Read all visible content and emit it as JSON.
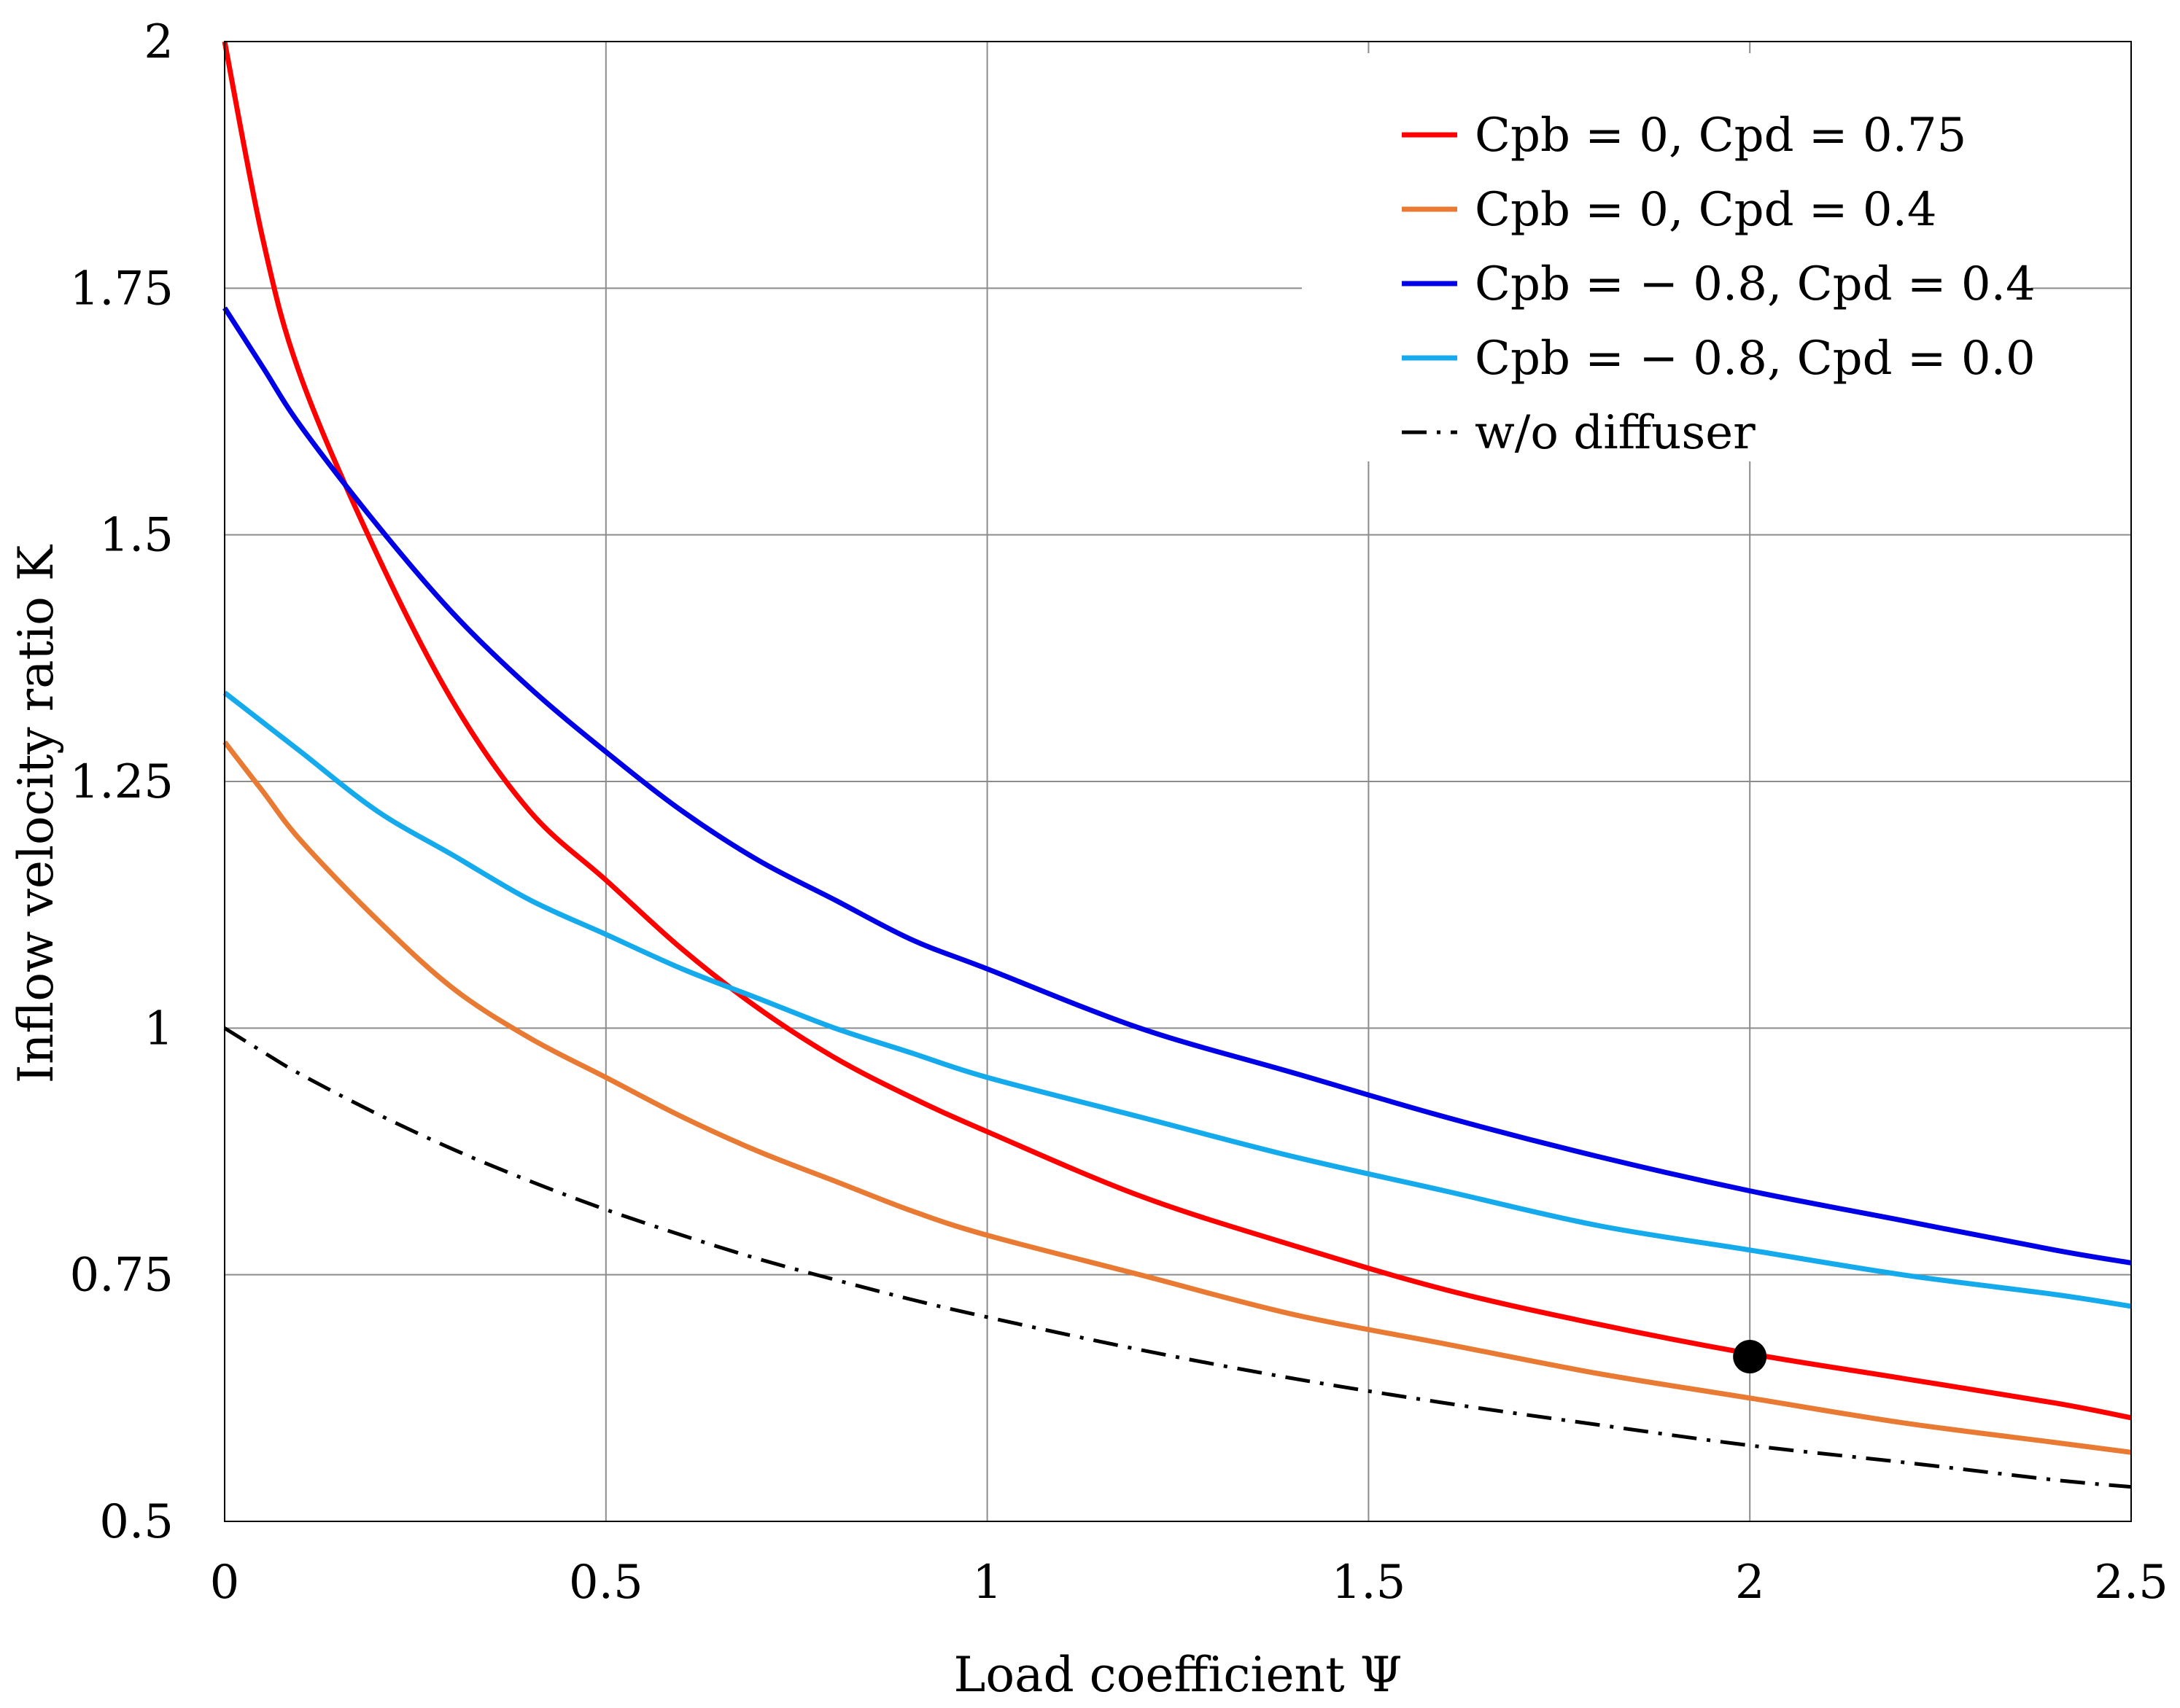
{
  "chart_data": {
    "type": "line",
    "title": "",
    "xlabel": "Load coefficient Ψ",
    "ylabel": "Inflow velocity ratio K",
    "xlim": [
      0,
      2.5
    ],
    "ylim": [
      0.5,
      2
    ],
    "xticks": [
      0,
      0.5,
      1,
      1.5,
      2,
      2.5
    ],
    "xtick_labels": [
      "0",
      "0.5",
      "1",
      "1.5",
      "2",
      "2.5"
    ],
    "yticks": [
      0.5,
      0.75,
      1,
      1.25,
      1.5,
      1.75,
      2
    ],
    "ytick_labels": [
      "0.5",
      "0.75",
      "1",
      "1.25",
      "1.5",
      "1.75",
      "2"
    ],
    "grid": true,
    "legend_position": "top-right",
    "x": [
      0,
      0.05,
      0.1,
      0.2,
      0.3,
      0.4,
      0.5,
      0.6,
      0.7,
      0.8,
      0.9,
      1.0,
      1.2,
      1.4,
      1.6,
      1.8,
      2.0,
      2.2,
      2.4,
      2.5
    ],
    "series": [
      {
        "name": "Cpb = 0, Cpd = 0.75",
        "color": "#ff0000",
        "dash": "solid",
        "values": [
          2.0,
          1.8,
          1.66,
          1.48,
          1.33,
          1.22,
          1.15,
          1.08,
          1.02,
          0.97,
          0.93,
          0.895,
          0.83,
          0.78,
          0.735,
          0.7,
          0.67,
          0.645,
          0.62,
          0.605
        ]
      },
      {
        "name": "Cpb = 0, Cpd = 0.4",
        "color": "#e87a33",
        "dash": "solid",
        "values": [
          1.29,
          1.24,
          1.19,
          1.11,
          1.04,
          0.99,
          0.95,
          0.91,
          0.875,
          0.845,
          0.815,
          0.79,
          0.75,
          0.71,
          0.68,
          0.65,
          0.625,
          0.6,
          0.58,
          0.57
        ]
      },
      {
        "name": "Cpb = − 0.8, Cpd = 0.4",
        "color": "#0000e6",
        "dash": "solid",
        "values": [
          1.73,
          1.67,
          1.61,
          1.51,
          1.42,
          1.345,
          1.28,
          1.22,
          1.17,
          1.13,
          1.09,
          1.06,
          1.0,
          0.955,
          0.91,
          0.87,
          0.835,
          0.805,
          0.775,
          0.762
        ]
      },
      {
        "name": "Cpb = − 0.8, Cpd = 0.0",
        "color": "#14aaeb",
        "dash": "solid",
        "values": [
          1.34,
          1.31,
          1.28,
          1.22,
          1.175,
          1.13,
          1.095,
          1.06,
          1.03,
          1.0,
          0.975,
          0.95,
          0.91,
          0.87,
          0.835,
          0.8,
          0.775,
          0.75,
          0.73,
          0.718
        ]
      },
      {
        "name": "w/o diffuser",
        "color": "#000000",
        "dash": "dashdot",
        "values": [
          1.0,
          0.976,
          0.953,
          0.913,
          0.877,
          0.845,
          0.816,
          0.79,
          0.766,
          0.745,
          0.725,
          0.707,
          0.674,
          0.645,
          0.62,
          0.598,
          0.577,
          0.56,
          0.542,
          0.535
        ]
      }
    ],
    "points": [
      {
        "x": 2.0,
        "y": 0.667,
        "color": "#000000"
      }
    ]
  }
}
